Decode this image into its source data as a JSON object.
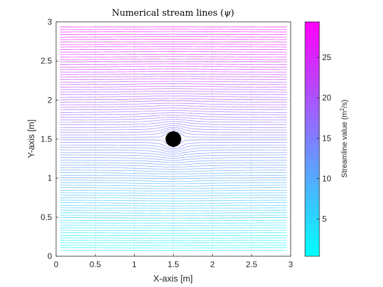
{
  "chart_data": {
    "type": "line",
    "title_main": "Numerical stream lines (",
    "title_symbol": "ψ",
    "title_end": ")",
    "xlabel": "X-axis [m]",
    "ylabel": "Y-axis [m]",
    "xlim": [
      0,
      3
    ],
    "ylim": [
      0,
      3
    ],
    "xticks": [
      "0",
      "0.5",
      "1",
      "1.5",
      "2",
      "2.5",
      "3"
    ],
    "yticks": [
      "0",
      "0.5",
      "1",
      "1.5",
      "2",
      "2.5",
      "3"
    ],
    "grid": true,
    "obstacle": {
      "shape": "circle",
      "center": [
        1.5,
        1.5
      ],
      "radius": 0.1,
      "color": "#000000"
    },
    "streamlines": {
      "x_range": [
        0.05,
        2.95
      ],
      "y_start": 0.08,
      "y_end": 2.93,
      "count": 90,
      "psi_min": 0.4,
      "psi_max": 29.4
    },
    "colorbar": {
      "label_pre": "Streamline value (m",
      "label_sup": "2",
      "label_post": "/s)",
      "range": [
        0.4,
        29.4
      ],
      "ticks": [
        "5",
        "10",
        "15",
        "20",
        "25"
      ],
      "tick_values": [
        5,
        10,
        15,
        20,
        25
      ],
      "colormap_start": "#00ffff",
      "colormap_end": "#ff00ff"
    }
  }
}
